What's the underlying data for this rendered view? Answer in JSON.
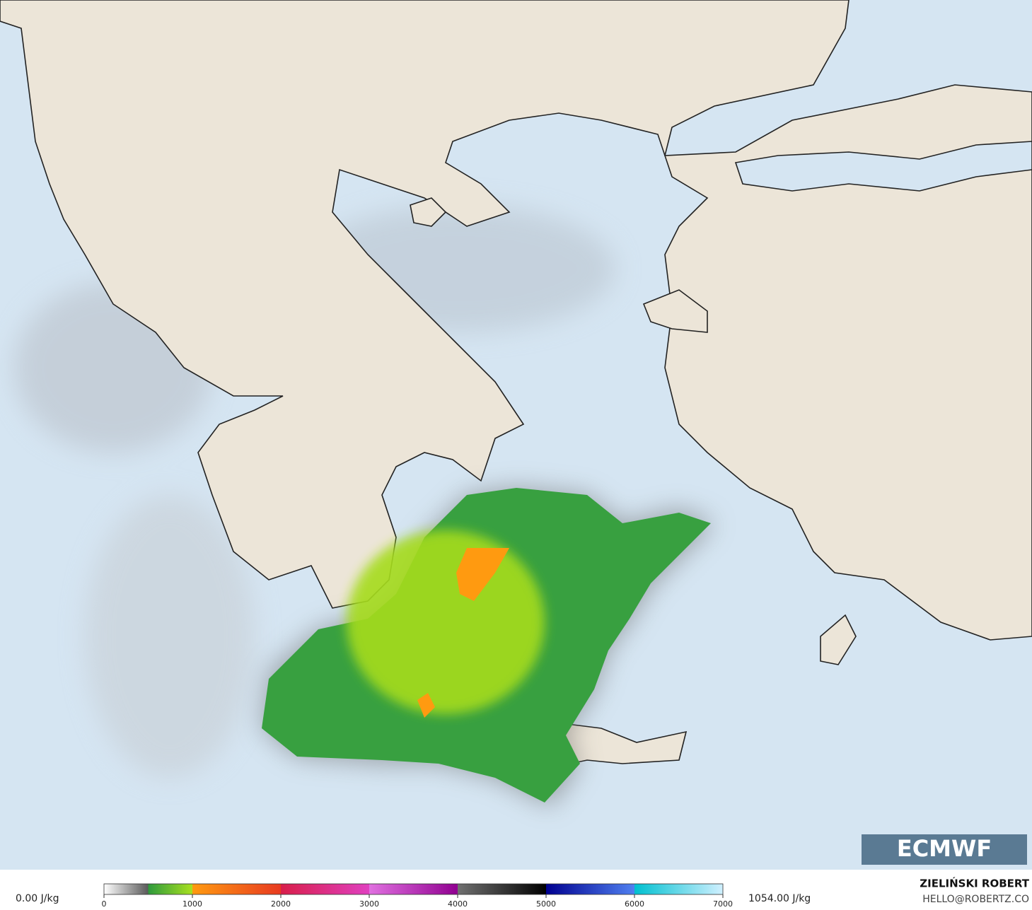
{
  "legend": {
    "min_label": "0.00 J/kg",
    "max_label": "1054.00 J/kg",
    "lim": [
      0,
      7000
    ],
    "ticks": [
      0,
      1000,
      2000,
      3000,
      4000,
      5000,
      6000,
      7000
    ],
    "stops": [
      {
        "value": 0,
        "color": "#ffffff"
      },
      {
        "value": 500,
        "color": "#5a5a5a"
      },
      {
        "value": 501,
        "color": "#2e9a3c"
      },
      {
        "value": 1000,
        "color": "#a8e020"
      },
      {
        "value": 1001,
        "color": "#ff9a10"
      },
      {
        "value": 2000,
        "color": "#e83a20"
      },
      {
        "value": 2001,
        "color": "#d81e4a"
      },
      {
        "value": 3000,
        "color": "#e040c0"
      },
      {
        "value": 3001,
        "color": "#e070e0"
      },
      {
        "value": 4000,
        "color": "#900090"
      },
      {
        "value": 4001,
        "color": "#707070"
      },
      {
        "value": 5000,
        "color": "#000000"
      },
      {
        "value": 5001,
        "color": "#000090"
      },
      {
        "value": 6000,
        "color": "#5080f0"
      },
      {
        "value": 6001,
        "color": "#00c0d0"
      },
      {
        "value": 7000,
        "color": "#d0f0ff"
      }
    ]
  },
  "author": {
    "name": "ZIELIŃSKI ROBERT",
    "email": "HELLO@ROBERTZ.CO"
  },
  "logo": "ECMWF"
}
